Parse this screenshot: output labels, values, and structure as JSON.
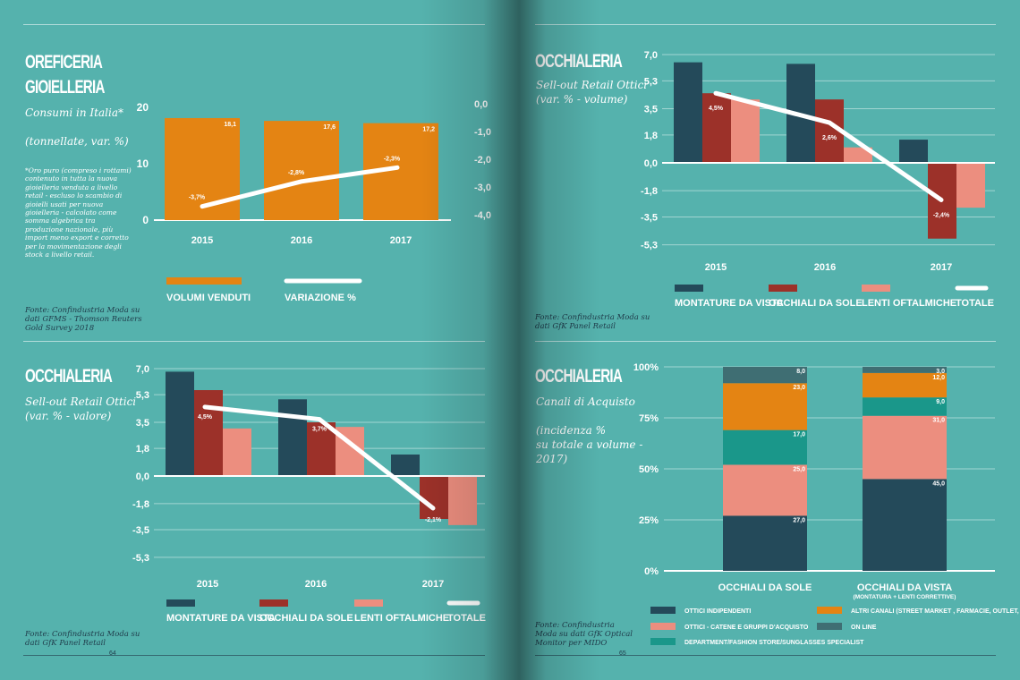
{
  "colors": {
    "background": "#55b2ad",
    "navy": "#244a5a",
    "red": "#9c3129",
    "salmon": "#ec8e7f",
    "teal": "#1a978a",
    "orange": "#e48413",
    "grey_teal": "#3f6e73",
    "line": "#ffffff"
  },
  "pages": {
    "left_number": "64",
    "right_number": "65"
  },
  "panel_tl": {
    "title_line1": "OREFICERIA",
    "title_line2": "GIOIELLERIA",
    "subtitle1": "Consumi in Italia*",
    "subtitle2": "(tonnellate, var. %)",
    "note": "*Oro puro (compreso i rottami) contenuto in tutta la nuova gioielleria venduta a livello retail - escluso lo scambio di gioielli usati per nuova gioielleria - calcolato come somma algebrica tra produzione nazionale, più import meno export e corretto per la movimentazione degli stock a livello retail.",
    "source": "Fonte: Confindustria Moda su dati GFMS - Thomson Reuters Gold Survey 2018"
  },
  "panel_tr": {
    "title": "OCCHIALERIA",
    "subtitle1": "Sell-out Retail Ottici",
    "subtitle2": "(var. % - volume)",
    "source": "Fonte: Confindustria Moda su dati GfK Panel Retail"
  },
  "panel_bl": {
    "title": "OCCHIALERIA",
    "subtitle1": "Sell-out Retail Ottici",
    "subtitle2": "(var. % - valore)",
    "source": "Fonte: Confindustria Moda su dati GfK Panel Retail"
  },
  "panel_br": {
    "title": "OCCHIALERIA",
    "subtitle1": "Canali di Acquisto",
    "subtitle2": "(incidenza %",
    "subtitle3": "su totale a volume -",
    "subtitle4": "2017)",
    "source": "Fonte: Confindustria Moda su dati GfK Optical Monitor per MIDO"
  },
  "chart_data": [
    {
      "id": "gold",
      "type": "bar",
      "categories": [
        "2015",
        "2016",
        "2017"
      ],
      "series": [
        {
          "name": "VOLUMI VENDUTI",
          "kind": "bar",
          "axis": "left",
          "color": "#e48413",
          "values": [
            18.1,
            17.6,
            17.2
          ],
          "labels": [
            "18,1",
            "17,6",
            "17,2"
          ]
        },
        {
          "name": "VARIAZIONE %",
          "kind": "line",
          "axis": "right",
          "color": "#ffffff",
          "values": [
            -3.7,
            -2.8,
            -2.3
          ],
          "labels": [
            "-3,7%",
            "-2,8%",
            "-2,3%"
          ]
        }
      ],
      "left_axis": {
        "ticks": [
          "0",
          "10",
          "20"
        ],
        "range": [
          0,
          20
        ]
      },
      "right_axis": {
        "ticks": [
          "0,0",
          "-1,0",
          "-2,0",
          "-3,0",
          "-4,0"
        ],
        "range": [
          -4,
          0
        ]
      }
    },
    {
      "id": "eyewear_volume",
      "type": "bar",
      "categories": [
        "2015",
        "2016",
        "2017"
      ],
      "y_ticks": [
        "7,0",
        "5,3",
        "3,5",
        "1,8",
        "0,0",
        "-1,8",
        "-3,5",
        "-5,3"
      ],
      "ylim": [
        -5.3,
        7.0
      ],
      "series": [
        {
          "name": "MONTATURE DA VISTA",
          "kind": "bar",
          "color": "#244a5a",
          "values": [
            6.5,
            6.4,
            1.5
          ]
        },
        {
          "name": "OCCHIALI DA SOLE",
          "kind": "bar",
          "color": "#9c3129",
          "values": [
            4.5,
            4.1,
            -4.9
          ]
        },
        {
          "name": "LENTI OFTALMICHE",
          "kind": "bar",
          "color": "#ec8e7f",
          "values": [
            4.1,
            1.0,
            -2.9
          ]
        },
        {
          "name": "TOTALE",
          "kind": "line",
          "color": "#ffffff",
          "values": [
            4.5,
            2.6,
            -2.4
          ],
          "labels": [
            "4,5%",
            "2,6%",
            "-2,4%"
          ]
        }
      ]
    },
    {
      "id": "eyewear_value",
      "type": "bar",
      "categories": [
        "2015",
        "2016",
        "2017"
      ],
      "y_ticks": [
        "7,0",
        "5,3",
        "3,5",
        "1,8",
        "0,0",
        "-1,8",
        "-3,5",
        "-5,3"
      ],
      "ylim": [
        -5.3,
        7.0
      ],
      "series": [
        {
          "name": "MONTATURE DA VISTA",
          "kind": "bar",
          "color": "#244a5a",
          "values": [
            6.8,
            5.0,
            1.4
          ]
        },
        {
          "name": "OCCHIALI DA SOLE",
          "kind": "bar",
          "color": "#9c3129",
          "values": [
            5.6,
            3.5,
            -2.8
          ]
        },
        {
          "name": "LENTI OFTALMICHE",
          "kind": "bar",
          "color": "#ec8e7f",
          "values": [
            3.1,
            3.2,
            -3.2
          ]
        },
        {
          "name": "TOTALE",
          "kind": "line",
          "color": "#ffffff",
          "values": [
            4.5,
            3.7,
            -2.1
          ],
          "labels": [
            "4,5%",
            "3,7%",
            "-2,1%"
          ]
        }
      ]
    },
    {
      "id": "channels",
      "type": "bar",
      "stacked": true,
      "categories": [
        "OCCHIALI DA SOLE",
        "OCCHIALI DA VISTA"
      ],
      "category_sub": [
        "",
        "(MONTATURA + LENTI CORRETTIVE)"
      ],
      "y_ticks": [
        "0%",
        "25%",
        "50%",
        "75%",
        "100%"
      ],
      "ylim": [
        0,
        100
      ],
      "series": [
        {
          "name": "OTTICI INDIPENDENTI",
          "color": "#244a5a",
          "values": [
            27.0,
            45.0
          ],
          "labels": [
            "27,0",
            "45,0"
          ]
        },
        {
          "name": "OTTICI - CATENE E GRUPPI D'ACQUISTO",
          "color": "#ec8e7f",
          "values": [
            25.0,
            31.0
          ],
          "labels": [
            "25,0",
            "31,0"
          ]
        },
        {
          "name": "DEPARTMENT/FASHION STORE/SUNGLASSES SPECIALIST",
          "color": "#1a978a",
          "values": [
            17.0,
            9.0
          ],
          "labels": [
            "17,0",
            "9,0"
          ]
        },
        {
          "name": "ALTRI CANALI (STREET MARKET , FARMACIE, OUTLET, ECC)",
          "color": "#e48413",
          "values": [
            23.0,
            12.0
          ],
          "labels": [
            "23,0",
            "12,0"
          ]
        },
        {
          "name": "ON LINE",
          "color": "#3f6e73",
          "values": [
            8.0,
            3.0
          ],
          "labels": [
            "8,0",
            "3,0"
          ]
        }
      ]
    }
  ]
}
